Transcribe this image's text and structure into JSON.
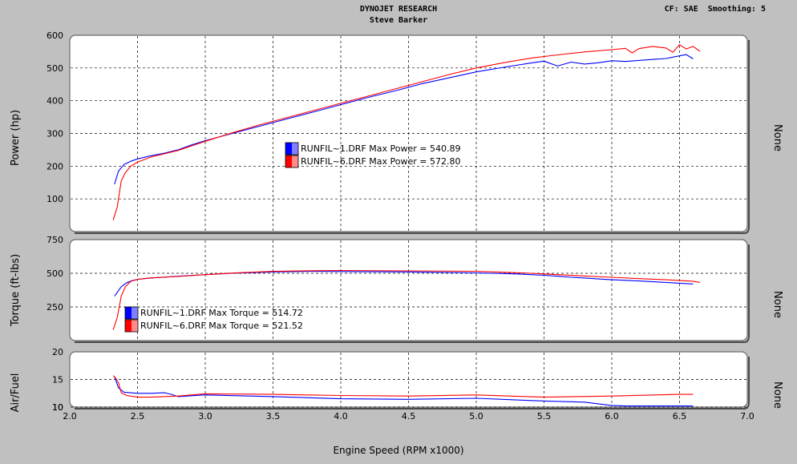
{
  "header": {
    "title": "DYNOJET RESEARCH",
    "subtitle": "Steve Barker",
    "info": "CF: SAE  Smoothing: 5"
  },
  "chart_data": [
    {
      "type": "line",
      "ylabel": "Power (hp)",
      "right_label": "None",
      "ylim": [
        0,
        600
      ],
      "yticks": [
        100,
        200,
        300,
        400,
        500,
        600
      ],
      "legend": [
        {
          "name": "RUNFIL~1.DRF",
          "stat": "Max Power = 540.89",
          "color": "#0000ff"
        },
        {
          "name": "RUNFIL~6.DRF",
          "stat": "Max Power = 572.80",
          "color": "#ff0000"
        }
      ],
      "series": [
        {
          "name": "RUNFIL~1.DRF",
          "color": "#0000ff",
          "x": [
            2.33,
            2.36,
            2.4,
            2.45,
            2.5,
            2.6,
            2.7,
            2.8,
            2.9,
            3.0,
            3.2,
            3.4,
            3.6,
            3.8,
            4.0,
            4.2,
            4.4,
            4.6,
            4.8,
            5.0,
            5.2,
            5.4,
            5.5,
            5.6,
            5.7,
            5.8,
            5.9,
            6.0,
            6.1,
            6.2,
            6.3,
            6.4,
            6.5,
            6.55,
            6.6
          ],
          "y": [
            145,
            185,
            205,
            215,
            222,
            232,
            240,
            250,
            265,
            278,
            300,
            322,
            344,
            366,
            388,
            410,
            430,
            452,
            470,
            488,
            502,
            515,
            521,
            506,
            518,
            512,
            516,
            522,
            520,
            523,
            526,
            529,
            537,
            541,
            528
          ]
        },
        {
          "name": "RUNFIL~6.DRF",
          "color": "#ff0000",
          "x": [
            2.32,
            2.35,
            2.38,
            2.41,
            2.45,
            2.5,
            2.6,
            2.7,
            2.8,
            2.9,
            3.0,
            3.2,
            3.4,
            3.6,
            3.8,
            4.0,
            4.2,
            4.4,
            4.6,
            4.8,
            5.0,
            5.2,
            5.4,
            5.6,
            5.8,
            6.0,
            6.1,
            6.15,
            6.2,
            6.3,
            6.4,
            6.45,
            6.5,
            6.55,
            6.6,
            6.65
          ],
          "y": [
            35,
            75,
            155,
            180,
            200,
            212,
            228,
            238,
            248,
            262,
            276,
            302,
            326,
            348,
            370,
            392,
            414,
            436,
            458,
            480,
            500,
            516,
            530,
            540,
            549,
            556,
            560,
            546,
            559,
            566,
            561,
            548,
            571,
            558,
            566,
            551
          ]
        }
      ]
    },
    {
      "type": "line",
      "ylabel": "Torque (ft-lbs)",
      "right_label": "None",
      "ylim": [
        0,
        750
      ],
      "yticks": [
        250,
        500,
        750
      ],
      "legend": [
        {
          "name": "RUNFIL~1.DRF",
          "stat": "Max Torque = 514.72",
          "color": "#0000ff"
        },
        {
          "name": "RUNFIL~6.DRF",
          "stat": "Max Torque = 521.52",
          "color": "#ff0000"
        }
      ],
      "series": [
        {
          "name": "RUNFIL~1.DRF",
          "color": "#0000ff",
          "x": [
            2.33,
            2.38,
            2.42,
            2.46,
            2.5,
            2.6,
            2.8,
            3.0,
            3.2,
            3.5,
            3.8,
            4.0,
            4.5,
            5.0,
            5.3,
            5.4,
            5.5,
            5.6,
            5.7,
            5.8,
            5.9,
            6.0,
            6.2,
            6.4,
            6.6
          ],
          "y": [
            330,
            400,
            430,
            445,
            455,
            465,
            478,
            490,
            500,
            510,
            514,
            513,
            510,
            503,
            495,
            490,
            485,
            478,
            470,
            465,
            458,
            452,
            443,
            432,
            420
          ]
        },
        {
          "name": "RUNFIL~6.DRF",
          "color": "#ff0000",
          "x": [
            2.32,
            2.35,
            2.38,
            2.41,
            2.45,
            2.5,
            2.6,
            2.8,
            3.0,
            3.2,
            3.5,
            3.8,
            4.0,
            4.5,
            5.0,
            5.2,
            5.4,
            5.5,
            5.6,
            5.8,
            6.0,
            6.2,
            6.4,
            6.5,
            6.6,
            6.65
          ],
          "y": [
            80,
            170,
            330,
            400,
            440,
            455,
            466,
            476,
            490,
            502,
            514,
            519,
            521,
            518,
            515,
            508,
            500,
            495,
            490,
            480,
            470,
            460,
            452,
            446,
            441,
            432
          ]
        }
      ]
    },
    {
      "type": "line",
      "ylabel": "Air/Fuel",
      "right_label": "None",
      "ylim": [
        10,
        20
      ],
      "yticks": [
        10,
        15,
        20
      ],
      "series": [
        {
          "name": "RUNFIL~1.DRF",
          "color": "#0000ff",
          "x": [
            2.33,
            2.36,
            2.4,
            2.5,
            2.6,
            2.7,
            2.75,
            2.8,
            3.0,
            3.5,
            4.0,
            4.5,
            5.0,
            5.5,
            5.8,
            5.9,
            6.0,
            6.1,
            6.3,
            6.5,
            6.6
          ],
          "y": [
            15.5,
            13.5,
            12.7,
            12.5,
            12.5,
            12.6,
            12.3,
            11.9,
            12.2,
            11.9,
            11.5,
            11.4,
            11.6,
            11.1,
            10.9,
            10.6,
            10.3,
            10.2,
            10.2,
            10.2,
            10.2
          ]
        },
        {
          "name": "RUNFIL~6.DRF",
          "color": "#ff0000",
          "x": [
            2.32,
            2.34,
            2.36,
            2.38,
            2.42,
            2.5,
            2.6,
            2.8,
            3.0,
            3.5,
            4.0,
            4.5,
            5.0,
            5.5,
            6.0,
            6.5,
            6.6
          ],
          "y": [
            15.7,
            15.2,
            14.4,
            12.6,
            12.1,
            11.8,
            11.8,
            12.0,
            12.4,
            12.3,
            12.1,
            12.0,
            12.2,
            11.8,
            12.0,
            12.3,
            12.3
          ]
        }
      ]
    }
  ],
  "x_axis": {
    "label": "Engine Speed (RPM x1000)",
    "range": [
      2.0,
      7.0
    ],
    "ticks": [
      "2.0",
      "2.5",
      "3.0",
      "3.5",
      "4.0",
      "4.5",
      "5.0",
      "5.5",
      "6.0",
      "6.5",
      "7.0"
    ]
  }
}
